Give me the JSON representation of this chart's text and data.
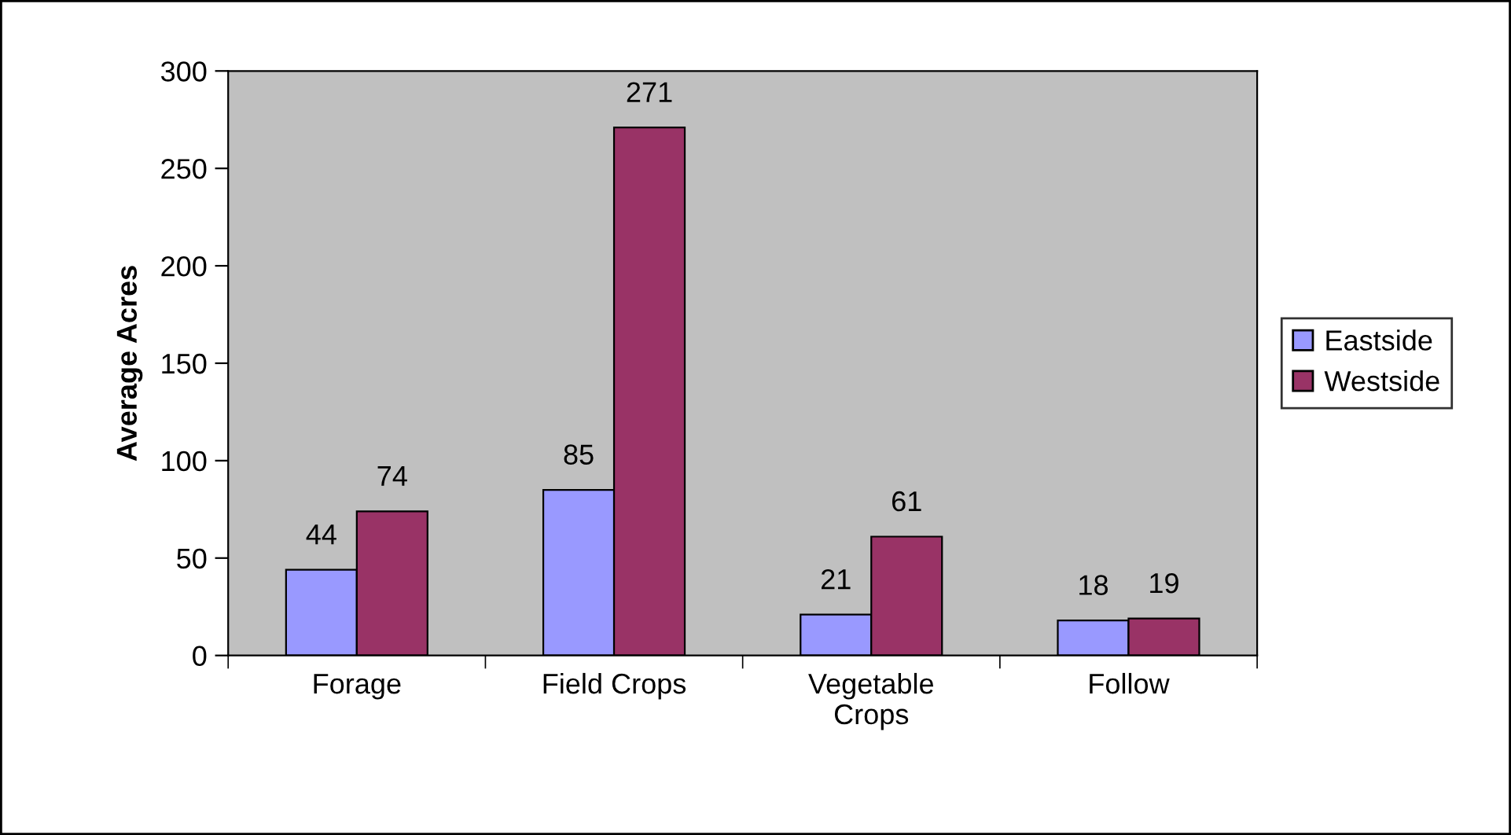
{
  "chart_data": {
    "type": "bar",
    "ylabel": "Average Acres",
    "categories": [
      "Forage",
      "Field Crops",
      "Vegetable\nCrops",
      "Follow"
    ],
    "series": [
      {
        "name": "Eastside",
        "color": "#9999ff",
        "values": [
          44,
          85,
          21,
          18
        ]
      },
      {
        "name": "Westside",
        "color": "#993366",
        "values": [
          74,
          271,
          61,
          19
        ]
      }
    ],
    "ylim": [
      0,
      300
    ],
    "yticks": [
      0,
      50,
      100,
      150,
      200,
      250,
      300
    ],
    "data_labels": true,
    "legend": "right",
    "grid": false
  }
}
